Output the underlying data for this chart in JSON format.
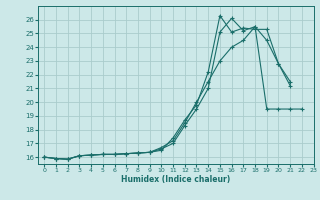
{
  "xlabel": "Humidex (Indice chaleur)",
  "bg_color": "#cce8e8",
  "grid_color": "#aacccc",
  "line_color": "#1a6e6a",
  "xlim": [
    -0.5,
    23
  ],
  "ylim": [
    15.5,
    27.0
  ],
  "xticks": [
    0,
    1,
    2,
    3,
    4,
    5,
    6,
    7,
    8,
    9,
    10,
    11,
    12,
    13,
    14,
    15,
    16,
    17,
    18,
    19,
    20,
    21,
    22,
    23
  ],
  "yticks": [
    16,
    17,
    18,
    19,
    20,
    21,
    22,
    23,
    24,
    25,
    26
  ],
  "series": [
    [
      16.0,
      15.9,
      15.85,
      16.1,
      16.15,
      16.2,
      16.2,
      16.25,
      16.3,
      16.35,
      16.5,
      17.4,
      18.7,
      19.8,
      22.2,
      26.3,
      25.1,
      25.4,
      25.3,
      25.3,
      22.8,
      21.2,
      null,
      null
    ],
    [
      16.0,
      15.9,
      15.85,
      16.1,
      16.15,
      16.2,
      16.2,
      16.25,
      16.3,
      16.35,
      16.6,
      17.0,
      18.3,
      19.5,
      21.0,
      25.1,
      26.1,
      25.2,
      25.5,
      24.5,
      22.8,
      21.5,
      null,
      null
    ],
    [
      16.0,
      15.9,
      15.85,
      16.1,
      16.15,
      16.2,
      16.2,
      16.25,
      16.3,
      16.35,
      16.7,
      17.2,
      18.5,
      20.0,
      21.5,
      23.0,
      24.0,
      24.5,
      25.5,
      19.5,
      19.5,
      19.5,
      19.5,
      null
    ]
  ]
}
